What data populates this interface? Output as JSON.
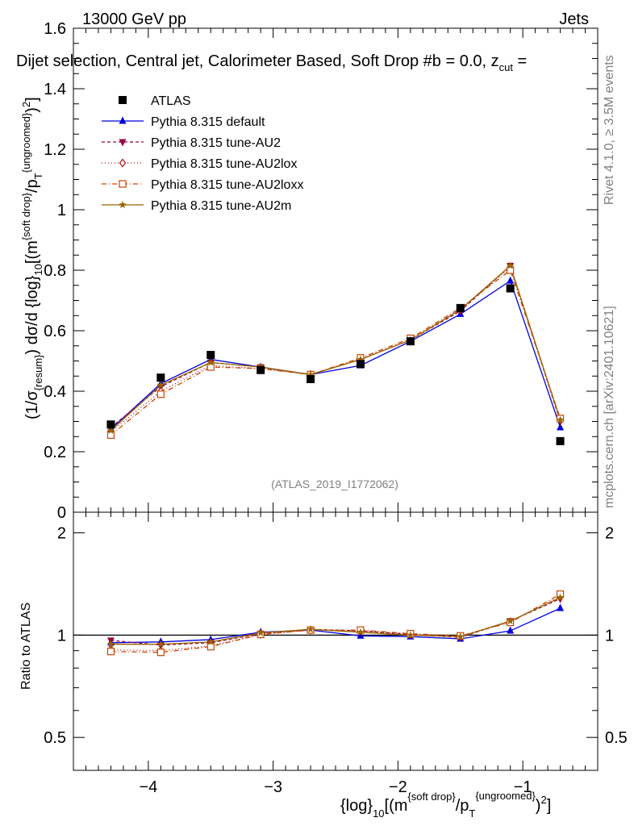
{
  "header": {
    "left": "13000 GeV pp",
    "right": "Jets",
    "subtitle": "Dijet selection, Central jet, Calorimeter Based, Soft Drop #b = 0.0, z",
    "subtitle_sub": "cut",
    "subtitle_tail": " ="
  },
  "side": {
    "rivet": "Rivet 4.1.0, ≥ 3.5M events",
    "mcplots": "mcplots.cern.ch [arXiv:2401.10621]"
  },
  "watermark": "(ATLAS_2019_I1772062)",
  "axis": {
    "ylabel_main": "(1/σ{resum}) dσ/d {log}10[(m{soft drop}/pT{ungroomed})2]",
    "ylabel_ratio": "Ratio to ATLAS",
    "xlabel": "{log}10[(m{soft drop}/pT{ungroomed})2]"
  },
  "legend_labels": [
    "ATLAS",
    "Pythia 8.315 default",
    "Pythia 8.315 tune-AU2",
    "Pythia 8.315 tune-AU2lox",
    "Pythia 8.315 tune-AU2loxx",
    "Pythia 8.315 tune-AU2m"
  ],
  "chart_data": {
    "type": "line",
    "xlim": [
      -4.6,
      -0.4
    ],
    "ylim_main": [
      0,
      1.6
    ],
    "ylim_ratio": [
      0.4,
      2.3
    ],
    "x": [
      -4.3,
      -3.9,
      -3.5,
      -3.1,
      -2.7,
      -2.3,
      -1.9,
      -1.5,
      -1.1,
      -0.7
    ],
    "x_ticks": [
      "−4",
      "−3",
      "−2",
      "−1"
    ],
    "y_ticks_main": [
      "0",
      "0.2",
      "0.4",
      "0.6",
      "0.8",
      "1",
      "1.2",
      "1.4",
      "1.6"
    ],
    "y_ticks_ratio": [
      "0.5",
      "1",
      "2"
    ],
    "reference": {
      "name": "ATLAS",
      "values": [
        0.29,
        0.445,
        0.52,
        0.47,
        0.44,
        0.49,
        0.565,
        0.675,
        0.74,
        0.235
      ]
    },
    "series": [
      {
        "name": "Pythia 8.315 default",
        "color": "#0000dd",
        "dash": "",
        "marker": "triangle-up",
        "values": [
          0.275,
          0.425,
          0.505,
          0.48,
          0.455,
          0.485,
          0.565,
          0.655,
          0.765,
          0.28
        ],
        "ratio": [
          0.95,
          0.955,
          0.97,
          1.02,
          1.035,
          0.995,
          0.99,
          0.975,
          1.03,
          1.2
        ]
      },
      {
        "name": "Pythia 8.315 tune-AU2",
        "color": "#990044",
        "dash": "4,3",
        "marker": "triangle-down",
        "values": [
          0.28,
          0.415,
          0.495,
          0.48,
          0.455,
          0.505,
          0.57,
          0.665,
          0.815,
          0.3
        ],
        "ratio": [
          0.965,
          0.935,
          0.95,
          1.01,
          1.04,
          1.03,
          1.005,
          0.985,
          1.1,
          1.28
        ]
      },
      {
        "name": "Pythia 8.315 tune-AU2lox",
        "color": "#aa1111",
        "dash": "1,3",
        "marker": "diamond",
        "values": [
          0.265,
          0.4,
          0.485,
          0.475,
          0.455,
          0.505,
          0.57,
          0.67,
          0.81,
          0.305
        ],
        "ratio": [
          0.905,
          0.9,
          0.93,
          1.005,
          1.035,
          1.03,
          1.005,
          0.99,
          1.095,
          1.3
        ]
      },
      {
        "name": "Pythia 8.315 tune-AU2loxx",
        "color": "#cc4400",
        "dash": "6,3,1,3",
        "marker": "square-open",
        "values": [
          0.255,
          0.39,
          0.48,
          0.475,
          0.455,
          0.51,
          0.575,
          0.675,
          0.8,
          0.31
        ],
        "ratio": [
          0.895,
          0.89,
          0.925,
          1.005,
          1.035,
          1.035,
          1.01,
          0.995,
          1.09,
          1.32
        ]
      },
      {
        "name": "Pythia 8.315 tune-AU2m",
        "color": "#996600",
        "dash": "",
        "marker": "star",
        "values": [
          0.27,
          0.42,
          0.495,
          0.48,
          0.455,
          0.505,
          0.57,
          0.67,
          0.815,
          0.305
        ],
        "ratio": [
          0.94,
          0.94,
          0.955,
          1.015,
          1.04,
          1.02,
          1.0,
          0.99,
          1.1,
          1.29
        ]
      }
    ]
  }
}
